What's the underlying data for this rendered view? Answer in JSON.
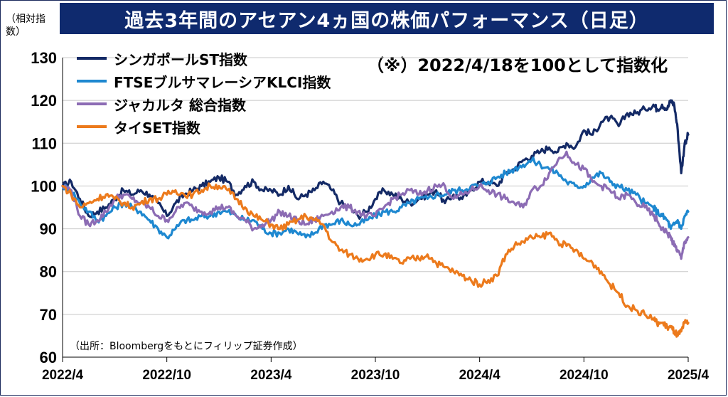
{
  "header": {
    "title": "過去3年間のアセアン4ヵ国の株価パフォーマンス（日足）",
    "unit_label": "（相対指数）",
    "note": "（※）2022/4/18を100として指数化",
    "source": "（出所：Bloombergをもとにフィリップ証券作成）"
  },
  "chart_data": {
    "type": "line",
    "title": "過去3年間のアセアン4ヵ国の株価パフォーマンス（日足）",
    "ylabel": "（相対指数）",
    "ylim": [
      60,
      130
    ],
    "yticks": [
      "60",
      "70",
      "80",
      "90",
      "100",
      "110",
      "120",
      "130"
    ],
    "xticks": [
      "2022/4",
      "2022/10",
      "2023/4",
      "2023/10",
      "2024/4",
      "2024/10",
      "2025/4"
    ],
    "xlim": [
      0,
      36
    ],
    "grid": true,
    "legend_position": "top-left",
    "series": [
      {
        "name": "シンガポールST指数",
        "color": "#142a66",
        "x": [
          0,
          0.5,
          1,
          1.5,
          2,
          2.5,
          3,
          3.5,
          4,
          4.5,
          5,
          5.5,
          6,
          6.5,
          7,
          7.5,
          8,
          8.5,
          9,
          9.5,
          10,
          10.5,
          11,
          11.5,
          12,
          12.5,
          13,
          13.5,
          14,
          14.5,
          15,
          15.5,
          16,
          16.5,
          17,
          17.5,
          18,
          18.5,
          19,
          19.5,
          20,
          20.5,
          21,
          21.5,
          22,
          22.5,
          23,
          23.5,
          24,
          24.5,
          25,
          25.5,
          26,
          26.5,
          27,
          27.5,
          28,
          28.5,
          29,
          29.5,
          30,
          30.5,
          31,
          31.5,
          32,
          32.5,
          33,
          33.5,
          34,
          34.2,
          34.5,
          34.8,
          35,
          35.2,
          35.4,
          35.6,
          35.8,
          36
        ],
        "values": [
          100,
          101,
          97,
          93,
          94,
          95,
          97,
          99,
          98,
          99,
          98,
          96,
          93,
          96,
          98,
          99,
          100,
          101,
          102,
          101,
          98,
          100,
          101,
          99,
          99,
          98,
          100,
          97,
          98,
          99,
          101,
          99,
          96,
          95,
          93,
          94,
          97,
          99,
          98,
          97,
          96,
          97,
          98,
          99,
          96,
          98,
          97,
          99,
          101,
          101,
          100,
          103,
          104,
          106,
          107,
          108,
          109,
          108,
          110,
          109,
          113,
          112,
          115,
          116,
          114,
          117,
          117,
          118,
          119,
          118,
          119,
          118,
          120,
          119,
          113,
          103,
          110,
          112
        ]
      },
      {
        "name": "FTSEブルサマレーシアKLCI指数",
        "color": "#1e88d0",
        "x": [
          0,
          0.5,
          1,
          1.5,
          2,
          2.5,
          3,
          3.5,
          4,
          4.5,
          5,
          5.5,
          6,
          6.5,
          7,
          7.5,
          8,
          8.5,
          9,
          9.5,
          10,
          10.5,
          11,
          11.5,
          12,
          12.5,
          13,
          13.5,
          14,
          14.5,
          15,
          15.5,
          16,
          16.5,
          17,
          17.5,
          18,
          18.5,
          19,
          19.5,
          20,
          20.5,
          21,
          21.5,
          22,
          22.5,
          23,
          23.5,
          24,
          24.5,
          25,
          25.5,
          26,
          26.5,
          27,
          27.5,
          28,
          28.5,
          29,
          29.5,
          30,
          30.5,
          31,
          31.5,
          32,
          32.5,
          33,
          33.5,
          34,
          34.2,
          34.5,
          34.8,
          35,
          35.2,
          35.4,
          35.6,
          35.8,
          36
        ],
        "values": [
          100,
          99,
          96,
          94,
          92,
          93,
          95,
          96,
          95,
          94,
          92,
          90,
          88,
          90,
          92,
          92,
          93,
          93,
          94,
          94,
          93,
          92,
          92,
          90,
          89,
          89,
          90,
          89,
          88,
          89,
          91,
          91,
          92,
          91,
          91,
          92,
          93,
          94,
          94,
          95,
          96,
          97,
          97,
          98,
          98,
          99,
          99,
          100,
          100,
          101,
          102,
          103,
          104,
          105,
          106,
          105,
          104,
          103,
          101,
          100,
          100,
          102,
          103,
          101,
          100,
          99,
          98,
          96,
          95,
          94,
          93,
          92,
          90,
          91,
          92,
          90,
          93,
          94
        ]
      },
      {
        "name": "ジャカルタ 総合指数",
        "color": "#8c6cb4",
        "x": [
          0,
          0.5,
          1,
          1.5,
          2,
          2.5,
          3,
          3.5,
          4,
          4.5,
          5,
          5.5,
          6,
          6.5,
          7,
          7.5,
          8,
          8.5,
          9,
          9.5,
          10,
          10.5,
          11,
          11.5,
          12,
          12.5,
          13,
          13.5,
          14,
          14.5,
          15,
          15.5,
          16,
          16.5,
          17,
          17.5,
          18,
          18.5,
          19,
          19.5,
          20,
          20.5,
          21,
          21.5,
          22,
          22.5,
          23,
          23.5,
          24,
          24.5,
          25,
          25.5,
          26,
          26.5,
          27,
          27.5,
          28,
          28.5,
          29,
          29.5,
          30,
          30.5,
          31,
          31.5,
          32,
          32.5,
          33,
          33.5,
          34,
          34.2,
          34.5,
          34.8,
          35,
          35.2,
          35.4,
          35.6,
          35.8,
          36
        ],
        "values": [
          100,
          99,
          93,
          91,
          92,
          94,
          97,
          98,
          97,
          96,
          95,
          93,
          92,
          94,
          96,
          95,
          94,
          94,
          95,
          95,
          93,
          92,
          90,
          91,
          92,
          94,
          93,
          92,
          91,
          92,
          93,
          94,
          95,
          95,
          94,
          93,
          93,
          95,
          97,
          98,
          99,
          98,
          99,
          100,
          100,
          97,
          98,
          99,
          100,
          99,
          98,
          97,
          96,
          95,
          99,
          100,
          103,
          106,
          108,
          105,
          104,
          101,
          100,
          99,
          97,
          98,
          96,
          95,
          93,
          92,
          90,
          89,
          88,
          86,
          85,
          83,
          87,
          88
        ]
      },
      {
        "name": "タイSET指数",
        "color": "#ec7a1c",
        "x": [
          0,
          0.5,
          1,
          1.5,
          2,
          2.5,
          3,
          3.5,
          4,
          4.5,
          5,
          5.5,
          6,
          6.5,
          7,
          7.5,
          8,
          8.5,
          9,
          9.5,
          10,
          10.5,
          11,
          11.5,
          12,
          12.5,
          13,
          13.5,
          14,
          14.5,
          15,
          15.5,
          16,
          16.5,
          17,
          17.5,
          18,
          18.5,
          19,
          19.5,
          20,
          20.5,
          21,
          21.5,
          22,
          22.5,
          23,
          23.5,
          24,
          24.5,
          25,
          25.5,
          26,
          26.5,
          27,
          27.5,
          28,
          28.5,
          29,
          29.5,
          30,
          30.5,
          31,
          31.5,
          32,
          32.5,
          33,
          33.5,
          34,
          34.2,
          34.5,
          34.8,
          35,
          35.2,
          35.4,
          35.6,
          35.8,
          36
        ],
        "values": [
          100,
          98,
          95,
          96,
          97,
          98,
          97,
          96,
          95,
          96,
          97,
          97,
          98,
          99,
          98,
          98,
          99,
          100,
          100,
          99,
          97,
          95,
          93,
          92,
          91,
          90,
          91,
          92,
          93,
          92,
          91,
          87,
          85,
          84,
          83,
          83,
          84,
          84,
          83,
          82,
          83,
          83,
          84,
          82,
          81,
          80,
          79,
          78,
          77,
          78,
          79,
          84,
          86,
          87,
          88,
          88,
          89,
          87,
          86,
          85,
          83,
          82,
          80,
          77,
          75,
          72,
          71,
          70,
          69,
          68,
          68,
          67,
          67,
          66,
          65,
          66,
          68,
          68
        ]
      }
    ]
  }
}
